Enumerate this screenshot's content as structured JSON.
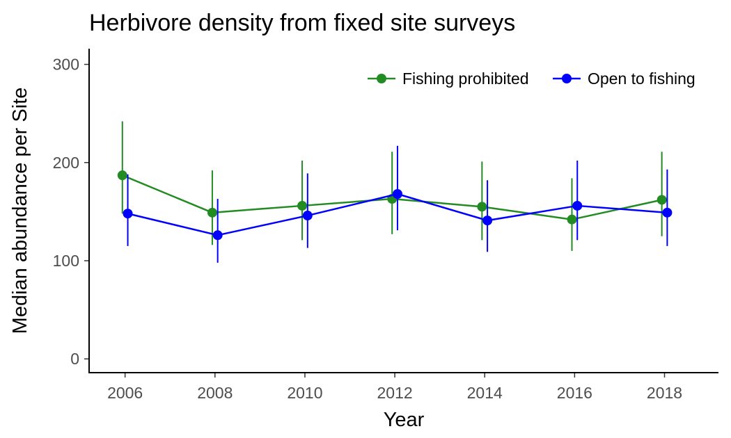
{
  "chart_data": {
    "type": "line",
    "title": "Herbivore density from fixed site surveys",
    "xlabel": "Year",
    "ylabel": "Median abundance per Site",
    "x": [
      2006,
      2008,
      2010,
      2012,
      2014,
      2016,
      2018
    ],
    "xlim": [
      2005.2,
      2019.2
    ],
    "ylim": [
      -14,
      316
    ],
    "yticks": [
      0,
      100,
      200,
      300
    ],
    "legend_position": "top-right",
    "series": [
      {
        "name": "Fishing prohibited",
        "color": "#228B22",
        "values": [
          187,
          149,
          156,
          163,
          155,
          142,
          162
        ],
        "lower": [
          148,
          116,
          121,
          127,
          121,
          110,
          125
        ],
        "upper": [
          242,
          192,
          202,
          211,
          201,
          184,
          211
        ]
      },
      {
        "name": "Open to fishing",
        "color": "#0000FF",
        "values": [
          148,
          126,
          146,
          168,
          141,
          156,
          149
        ],
        "lower": [
          115,
          98,
          113,
          131,
          109,
          121,
          115
        ],
        "upper": [
          188,
          163,
          189,
          217,
          182,
          202,
          193
        ]
      }
    ]
  }
}
